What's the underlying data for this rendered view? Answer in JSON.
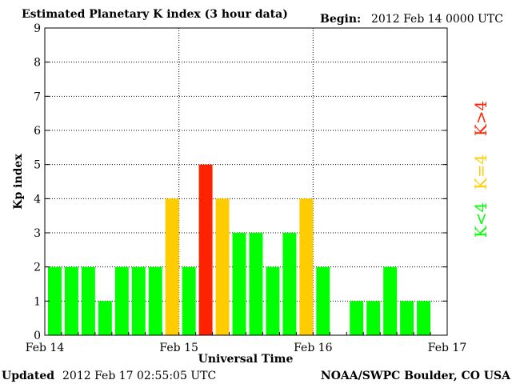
{
  "header": {
    "title": "Estimated Planetary K index (3 hour data)",
    "begin_label": "Begin:",
    "begin_value": "2012 Feb 14 0000 UTC"
  },
  "footer": {
    "updated_label": "Updated",
    "updated_value": "2012 Feb 17 02:55:05 UTC",
    "credit": "NOAA/SWPC Boulder, CO USA"
  },
  "legend": {
    "low": "K<4",
    "mid": "K=4",
    "high": "K>4"
  },
  "colors": {
    "low": "#00ff00",
    "mid": "#ffcc00",
    "high": "#ff2200",
    "grid": "#000000",
    "axes": "#000000"
  },
  "chart_data": {
    "type": "bar",
    "title": "Estimated Planetary K index (3 hour data)",
    "xlabel": "Universal Time",
    "ylabel": "Kp index",
    "ylim": [
      0,
      9
    ],
    "y_ticks": [
      "0",
      "1",
      "2",
      "3",
      "4",
      "5",
      "6",
      "7",
      "8",
      "9"
    ],
    "x_range_days": [
      0,
      3
    ],
    "x_ticks": [
      {
        "label": "Feb 14",
        "day": 0
      },
      {
        "label": "Feb 15",
        "day": 1
      },
      {
        "label": "Feb 16",
        "day": 2
      },
      {
        "label": "Feb 17",
        "day": 3
      }
    ],
    "grid": true,
    "interval_hours": 3,
    "values": [
      2,
      2,
      2,
      1,
      2,
      2,
      2,
      4,
      2,
      5,
      4,
      3,
      3,
      2,
      3,
      4,
      2,
      0,
      1,
      1,
      2,
      1,
      1
    ]
  }
}
